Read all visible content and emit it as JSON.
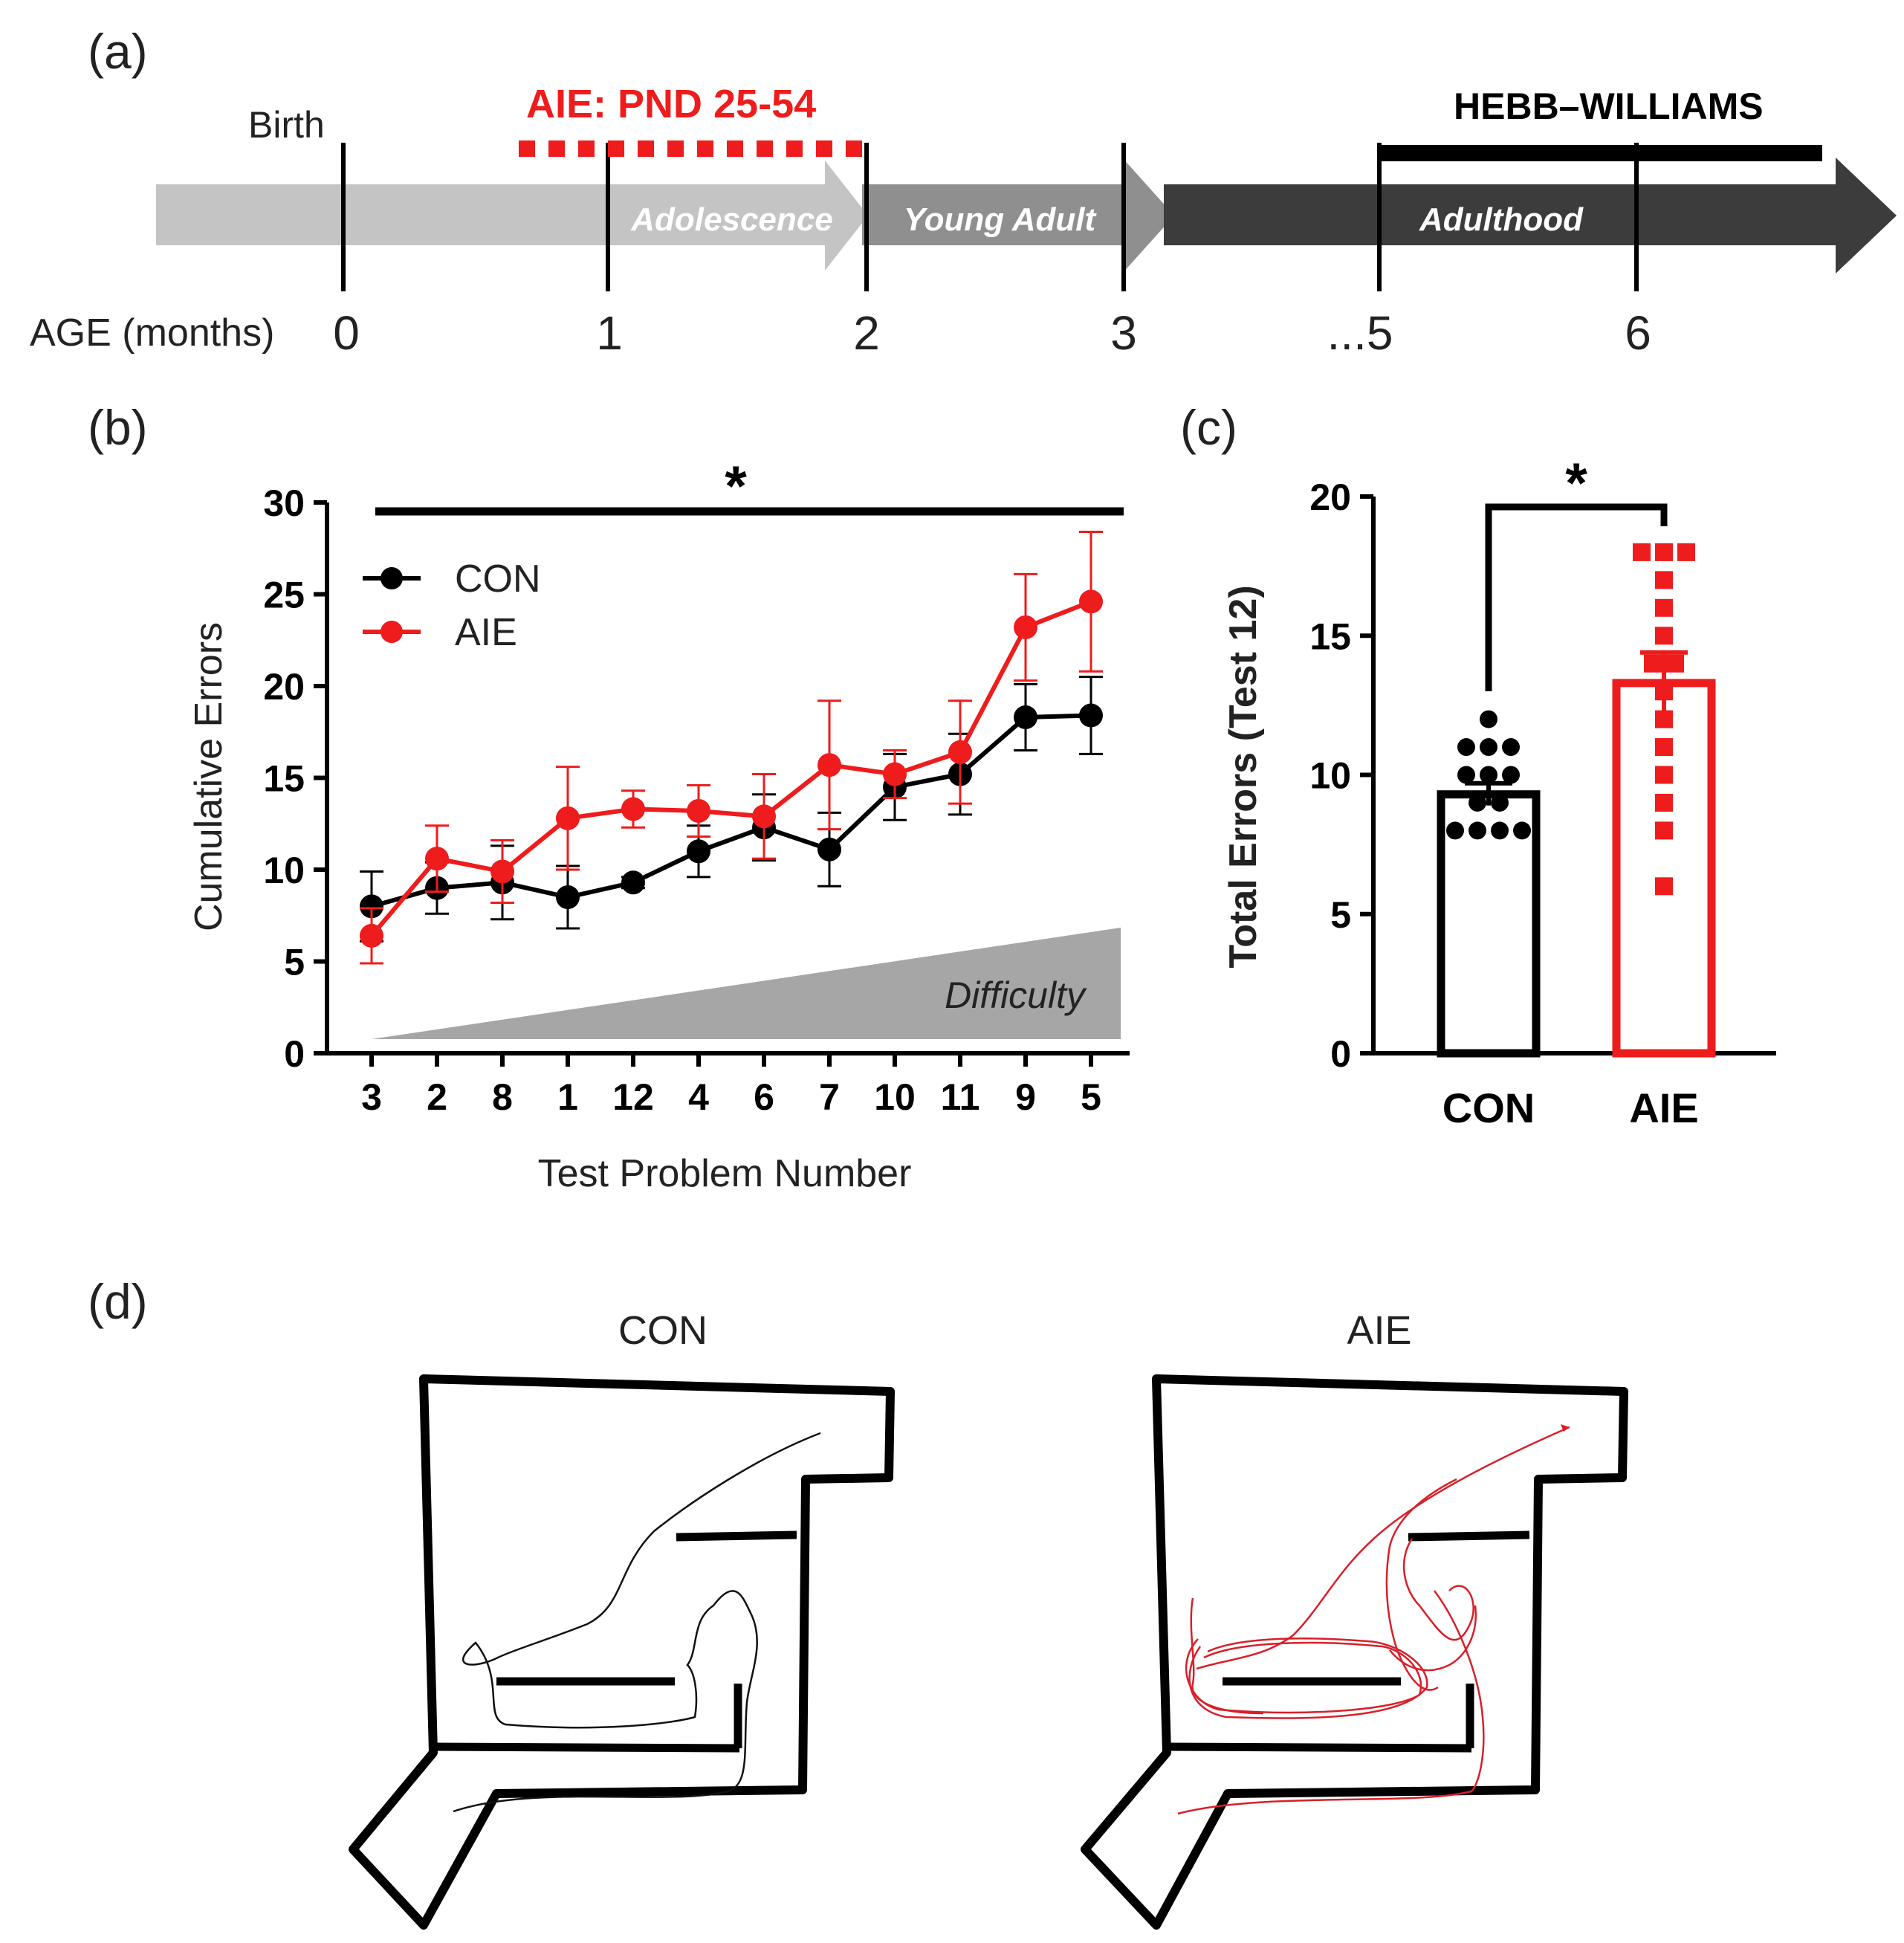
{
  "panels": {
    "a": "(a)",
    "b": "(b)",
    "c": "(c)",
    "d": "(d)"
  },
  "timeline": {
    "birth_label": "Birth",
    "aie_label": "AIE: PND 25-54",
    "hebb_label": "HEBB–WILLIAMS",
    "age_label": "AGE (months)",
    "phases": [
      "Adolescence",
      "Young Adult",
      "Adulthood"
    ],
    "ticks": [
      "0",
      "1",
      "2",
      "3",
      "...5",
      "6"
    ]
  },
  "chart_data": [
    {
      "type": "line",
      "title": "",
      "xlabel": "Test Problem Number",
      "ylabel": "Cumulative Errors",
      "ylim": [
        0,
        30
      ],
      "yticks": [
        "0",
        "5",
        "10",
        "15",
        "20",
        "25",
        "30"
      ],
      "categories": [
        "3",
        "2",
        "8",
        "1",
        "12",
        "4",
        "6",
        "7",
        "10",
        "11",
        "9",
        "5"
      ],
      "series": [
        {
          "name": "CON",
          "color": "#000000",
          "values": [
            8.0,
            9.0,
            9.3,
            8.5,
            9.3,
            11.0,
            12.3,
            11.1,
            14.5,
            15.2,
            18.3,
            18.4
          ],
          "err": [
            1.9,
            1.4,
            2.0,
            1.7,
            0.3,
            1.4,
            1.8,
            2.0,
            1.8,
            2.2,
            1.8,
            2.1
          ]
        },
        {
          "name": "AIE",
          "color": "#ee1c1c",
          "values": [
            6.4,
            10.6,
            9.9,
            12.8,
            13.3,
            13.2,
            12.9,
            15.7,
            15.2,
            16.4,
            23.2,
            24.6
          ],
          "err": [
            1.5,
            1.8,
            1.7,
            2.8,
            1.0,
            1.4,
            2.3,
            3.5,
            1.3,
            2.8,
            2.9,
            3.8
          ]
        }
      ],
      "legend": "top-left",
      "annotation": "*",
      "difficulty_label": "Difficulty"
    },
    {
      "type": "bar",
      "title": "",
      "xlabel": "",
      "ylabel": "Total Errors (Test 12)",
      "ylim": [
        0,
        20
      ],
      "yticks": [
        "0",
        "5",
        "10",
        "15",
        "20"
      ],
      "categories": [
        "CON",
        "AIE"
      ],
      "values": [
        9.3,
        13.3
      ],
      "err": [
        0.4,
        1.1
      ],
      "colors": [
        "#000000",
        "#ee1c1c"
      ],
      "points": [
        [
          12,
          11,
          11,
          11,
          10,
          10,
          10,
          9,
          9,
          8,
          8,
          8,
          8
        ],
        [
          18,
          18,
          18,
          17,
          16,
          15,
          14,
          14,
          13,
          12,
          11,
          10,
          9,
          8,
          6
        ]
      ],
      "annotation": "*"
    }
  ],
  "maze": {
    "con_title": "CON",
    "aie_title": "AIE"
  }
}
